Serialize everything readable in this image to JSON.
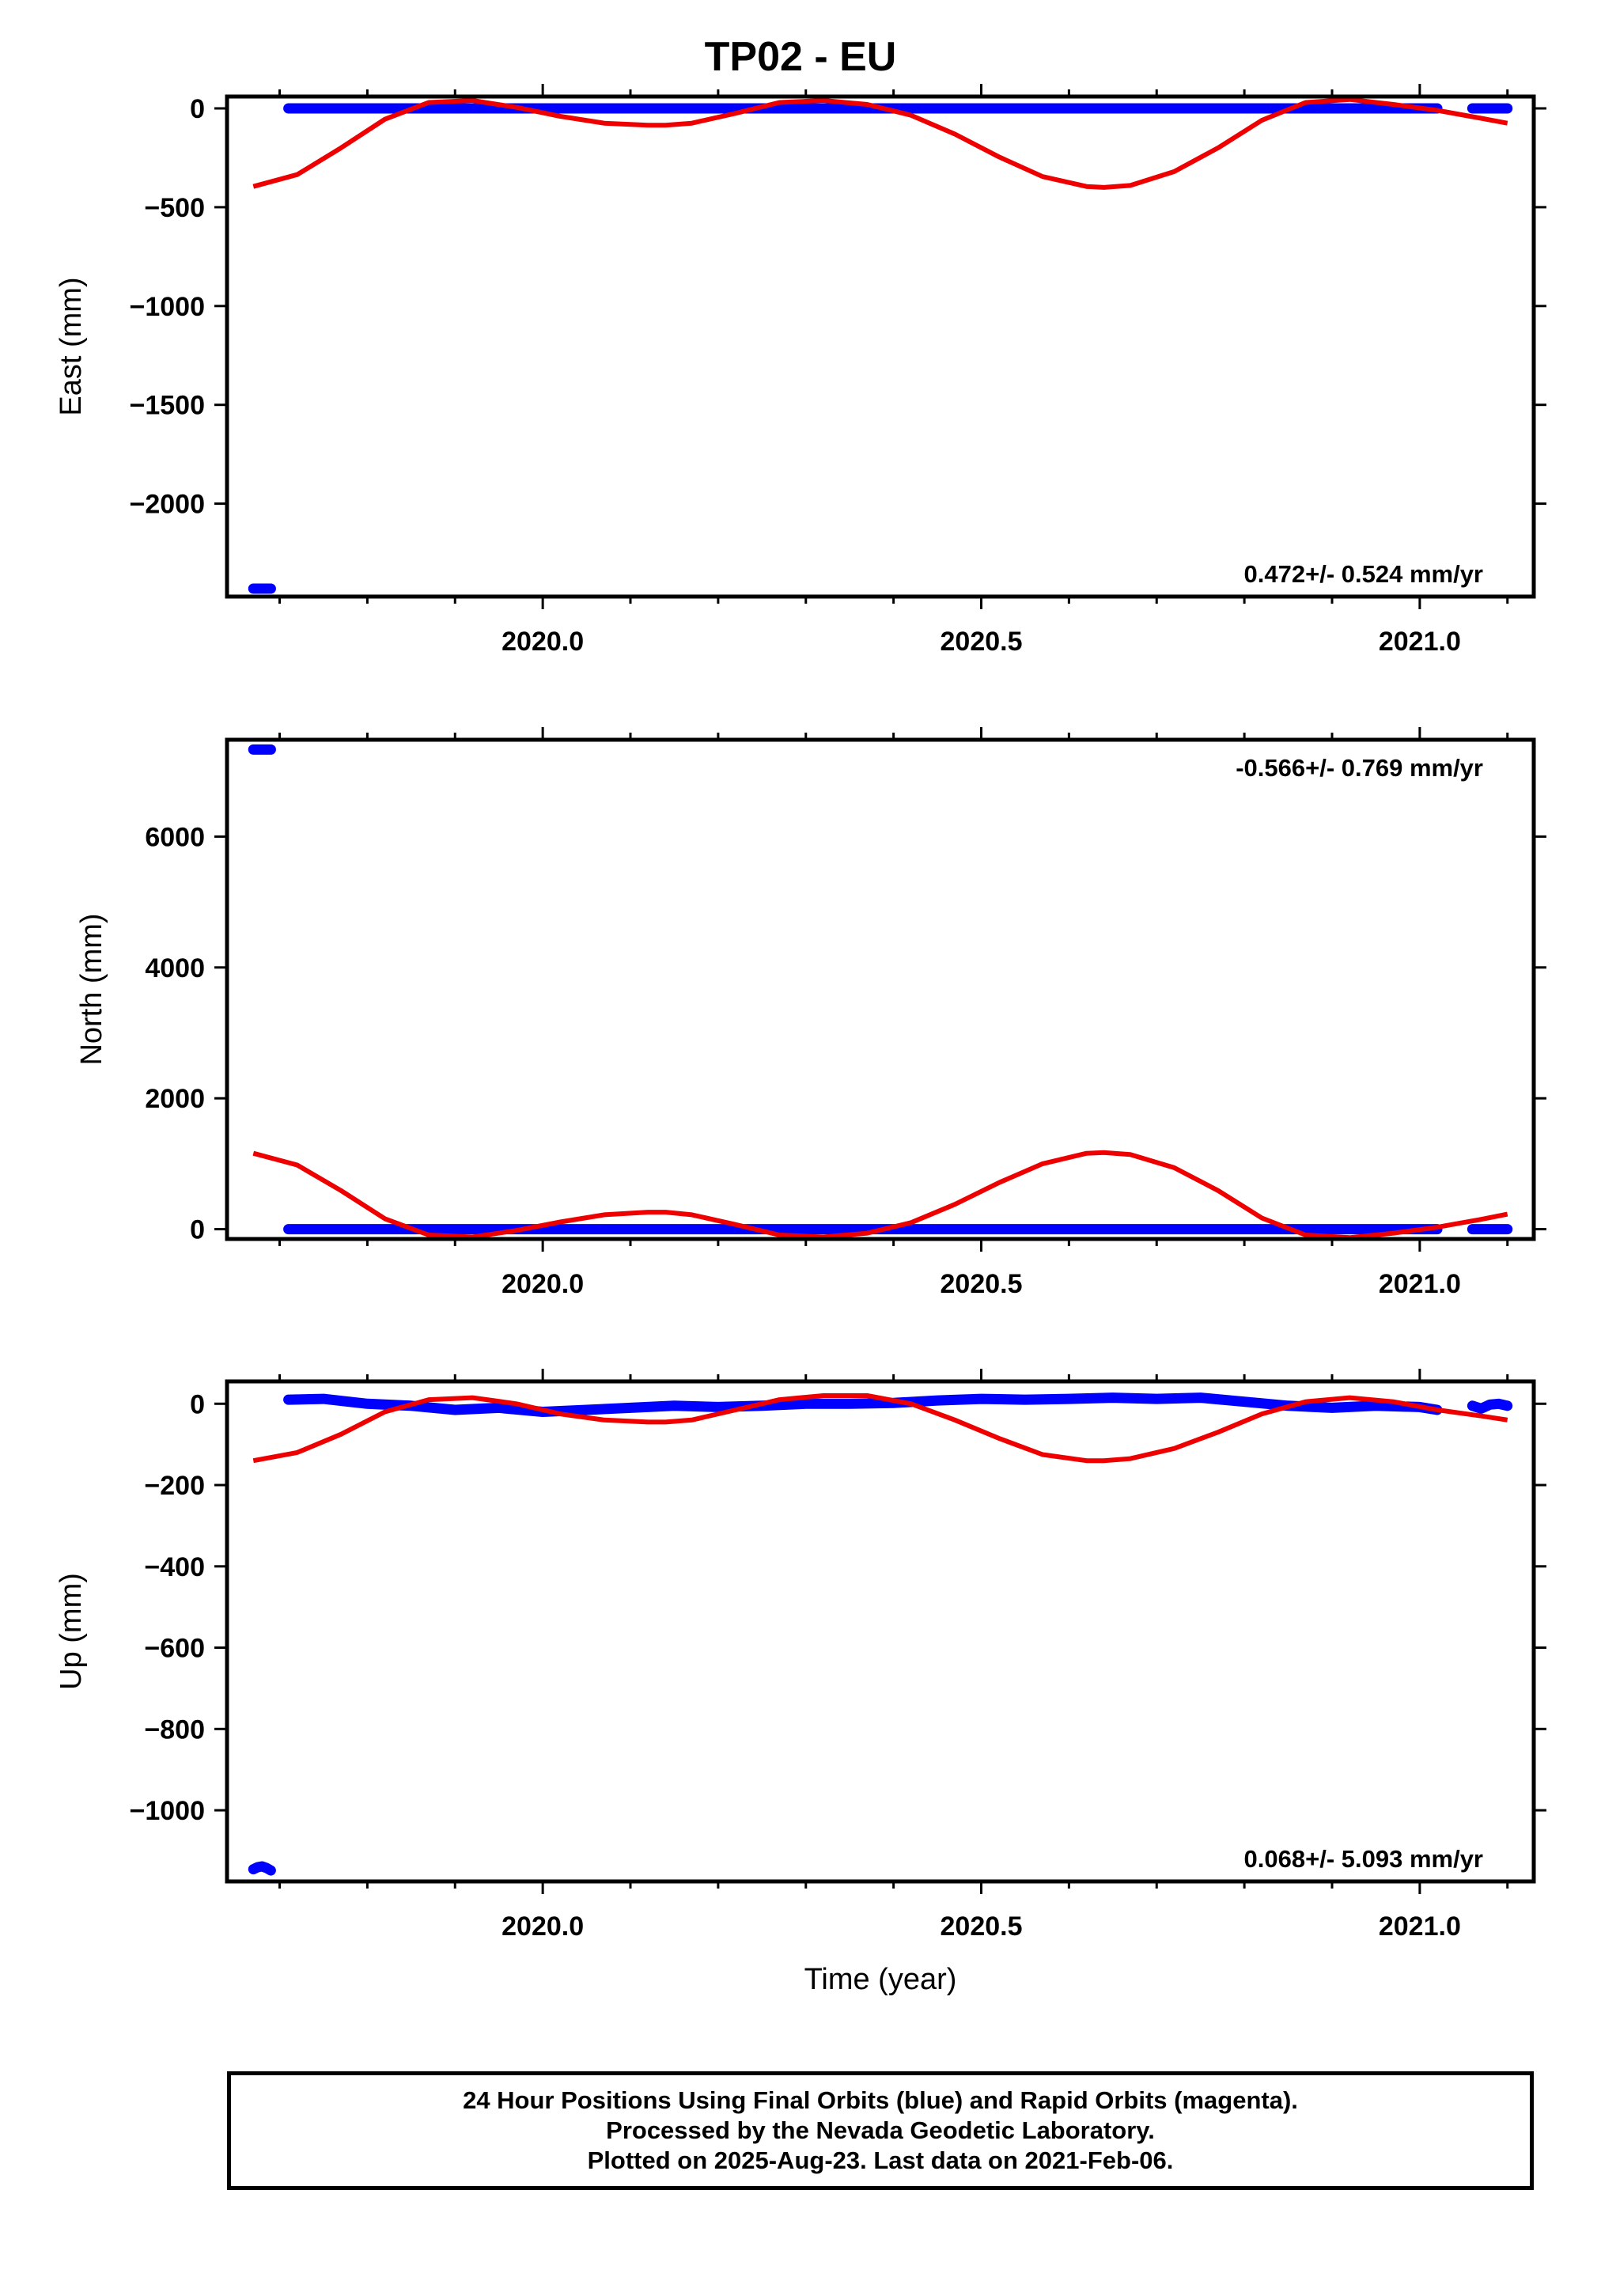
{
  "chart_data": [
    {
      "type": "scatter",
      "title": "TP02 - EU",
      "ylabel": "East (mm)",
      "xlabel": "",
      "xlim": [
        2019.64,
        2021.13
      ],
      "ylim": [
        -2470,
        60
      ],
      "yticks": [
        0,
        -500,
        -1000,
        -1500,
        -2000
      ],
      "xticks": [
        2020.0,
        2020.5,
        2021.0
      ],
      "xtick_labels": [
        "2020.0",
        "2020.5",
        "2021.0"
      ],
      "show_xtick_labels": true,
      "grid": false,
      "rate_text": "0.472+/- 0.524 mm/yr",
      "rate_position": "bottom-right",
      "series": [
        {
          "role": "final_orbits",
          "color": "#0000ff",
          "segments": [
            {
              "x_start": 2019.67,
              "x_end": 2019.69,
              "y": -2430
            },
            {
              "x_start": 2019.71,
              "x_end": 2021.02,
              "y": 0
            },
            {
              "x_start": 2021.06,
              "x_end": 2021.1,
              "y": 0
            }
          ]
        },
        {
          "role": "seasonal_model",
          "color": "#ee0000",
          "x": [
            2019.67,
            2019.72,
            2019.77,
            2019.82,
            2019.87,
            2019.92,
            2019.97,
            2020.02,
            2020.07,
            2020.12,
            2020.14,
            2020.17,
            2020.22,
            2020.27,
            2020.32,
            2020.37,
            2020.42,
            2020.47,
            2020.52,
            2020.57,
            2020.62,
            2020.64,
            2020.67,
            2020.72,
            2020.77,
            2020.82,
            2020.87,
            2020.92,
            2020.97,
            2021.02,
            2021.07,
            2021.1
          ],
          "y": [
            -395,
            -335,
            -200,
            -55,
            30,
            40,
            5,
            -40,
            -75,
            -85,
            -85,
            -75,
            -25,
            30,
            40,
            20,
            -35,
            -130,
            -245,
            -345,
            -395,
            -400,
            -390,
            -320,
            -200,
            -60,
            30,
            45,
            20,
            -10,
            -50,
            -75
          ]
        }
      ]
    },
    {
      "type": "scatter",
      "title": "",
      "ylabel": "North (mm)",
      "xlabel": "",
      "xlim": [
        2019.64,
        2021.13
      ],
      "ylim": [
        -150,
        7480
      ],
      "yticks": [
        0,
        2000,
        4000,
        6000
      ],
      "xticks": [
        2020.0,
        2020.5,
        2021.0
      ],
      "xtick_labels": [
        "2020.0",
        "2020.5",
        "2021.0"
      ],
      "show_xtick_labels": true,
      "grid": false,
      "rate_text": "-0.566+/- 0.769 mm/yr",
      "rate_position": "top-right",
      "series": [
        {
          "role": "final_orbits",
          "color": "#0000ff",
          "segments": [
            {
              "x_start": 2019.67,
              "x_end": 2019.69,
              "y": 7330
            },
            {
              "x_start": 2019.71,
              "x_end": 2021.02,
              "y": 0
            },
            {
              "x_start": 2021.06,
              "x_end": 2021.1,
              "y": 0
            }
          ]
        },
        {
          "role": "seasonal_model",
          "color": "#ee0000",
          "x": [
            2019.67,
            2019.72,
            2019.77,
            2019.82,
            2019.87,
            2019.92,
            2019.97,
            2020.02,
            2020.07,
            2020.12,
            2020.14,
            2020.17,
            2020.22,
            2020.27,
            2020.32,
            2020.37,
            2020.42,
            2020.47,
            2020.52,
            2020.57,
            2020.62,
            2020.64,
            2020.67,
            2020.72,
            2020.77,
            2020.82,
            2020.87,
            2020.92,
            2020.97,
            2021.02,
            2021.07,
            2021.1
          ],
          "y": [
            1160,
            980,
            590,
            160,
            -90,
            -120,
            -20,
            110,
            220,
            260,
            260,
            220,
            70,
            -90,
            -120,
            -60,
            100,
            380,
            710,
            1000,
            1160,
            1170,
            1140,
            940,
            590,
            170,
            -90,
            -130,
            -60,
            30,
            150,
            230
          ]
        }
      ]
    },
    {
      "type": "scatter",
      "title": "",
      "ylabel": "Up (mm)",
      "xlabel": "Time (year)",
      "xlim": [
        2019.64,
        2021.13
      ],
      "ylim": [
        -1175,
        55
      ],
      "yticks": [
        0,
        -200,
        -400,
        -600,
        -800,
        -1000
      ],
      "xticks": [
        2020.0,
        2020.5,
        2021.0
      ],
      "xtick_labels": [
        "2020.0",
        "2020.5",
        "2021.0"
      ],
      "show_xtick_labels": true,
      "grid": false,
      "rate_text": "0.068+/- 5.093 mm/yr",
      "rate_position": "bottom-right",
      "series": [
        {
          "role": "final_orbits",
          "color": "#0000ff",
          "groups": [
            {
              "x": [
                2019.67,
                2019.675,
                2019.68,
                2019.685,
                2019.69
              ],
              "y": [
                -1145,
                -1140,
                -1138,
                -1142,
                -1148
              ]
            },
            {
              "x": [
                2019.71,
                2019.75,
                2019.8,
                2019.85,
                2019.9,
                2019.95,
                2020.0,
                2020.05,
                2020.1,
                2020.15,
                2020.2,
                2020.25,
                2020.3,
                2020.35,
                2020.4,
                2020.45,
                2020.5,
                2020.55,
                2020.6,
                2020.65,
                2020.7,
                2020.75,
                2020.8,
                2020.85,
                2020.9,
                2020.95,
                2021.0,
                2021.02
              ],
              "y": [
                10,
                12,
                0,
                -5,
                -15,
                -10,
                -20,
                -15,
                -10,
                -5,
                -8,
                -5,
                0,
                0,
                2,
                8,
                12,
                10,
                12,
                15,
                12,
                15,
                5,
                -5,
                -10,
                -5,
                -8,
                -15
              ]
            },
            {
              "x": [
                2021.06,
                2021.07,
                2021.08,
                2021.09,
                2021.1
              ],
              "y": [
                -5,
                -12,
                -2,
                0,
                -5
              ]
            }
          ]
        },
        {
          "role": "seasonal_model",
          "color": "#ee0000",
          "x": [
            2019.67,
            2019.72,
            2019.77,
            2019.82,
            2019.87,
            2019.92,
            2019.97,
            2020.02,
            2020.07,
            2020.12,
            2020.14,
            2020.17,
            2020.22,
            2020.27,
            2020.32,
            2020.37,
            2020.42,
            2020.47,
            2020.52,
            2020.57,
            2020.62,
            2020.64,
            2020.67,
            2020.72,
            2020.77,
            2020.82,
            2020.87,
            2020.92,
            2020.97,
            2021.02,
            2021.07,
            2021.1
          ],
          "y": [
            -140,
            -120,
            -75,
            -20,
            10,
            15,
            0,
            -25,
            -40,
            -45,
            -45,
            -40,
            -15,
            10,
            20,
            20,
            0,
            -40,
            -85,
            -125,
            -140,
            -140,
            -135,
            -110,
            -70,
            -25,
            5,
            15,
            5,
            -15,
            -30,
            -40
          ]
        }
      ]
    }
  ],
  "footer": {
    "line1": "24 Hour Positions Using Final Orbits (blue) and Rapid Orbits (magenta).",
    "line2": "Processed by the Nevada Geodetic Laboratory.",
    "line3": "Plotted on 2025-Aug-23. Last data on 2021-Feb-06."
  }
}
